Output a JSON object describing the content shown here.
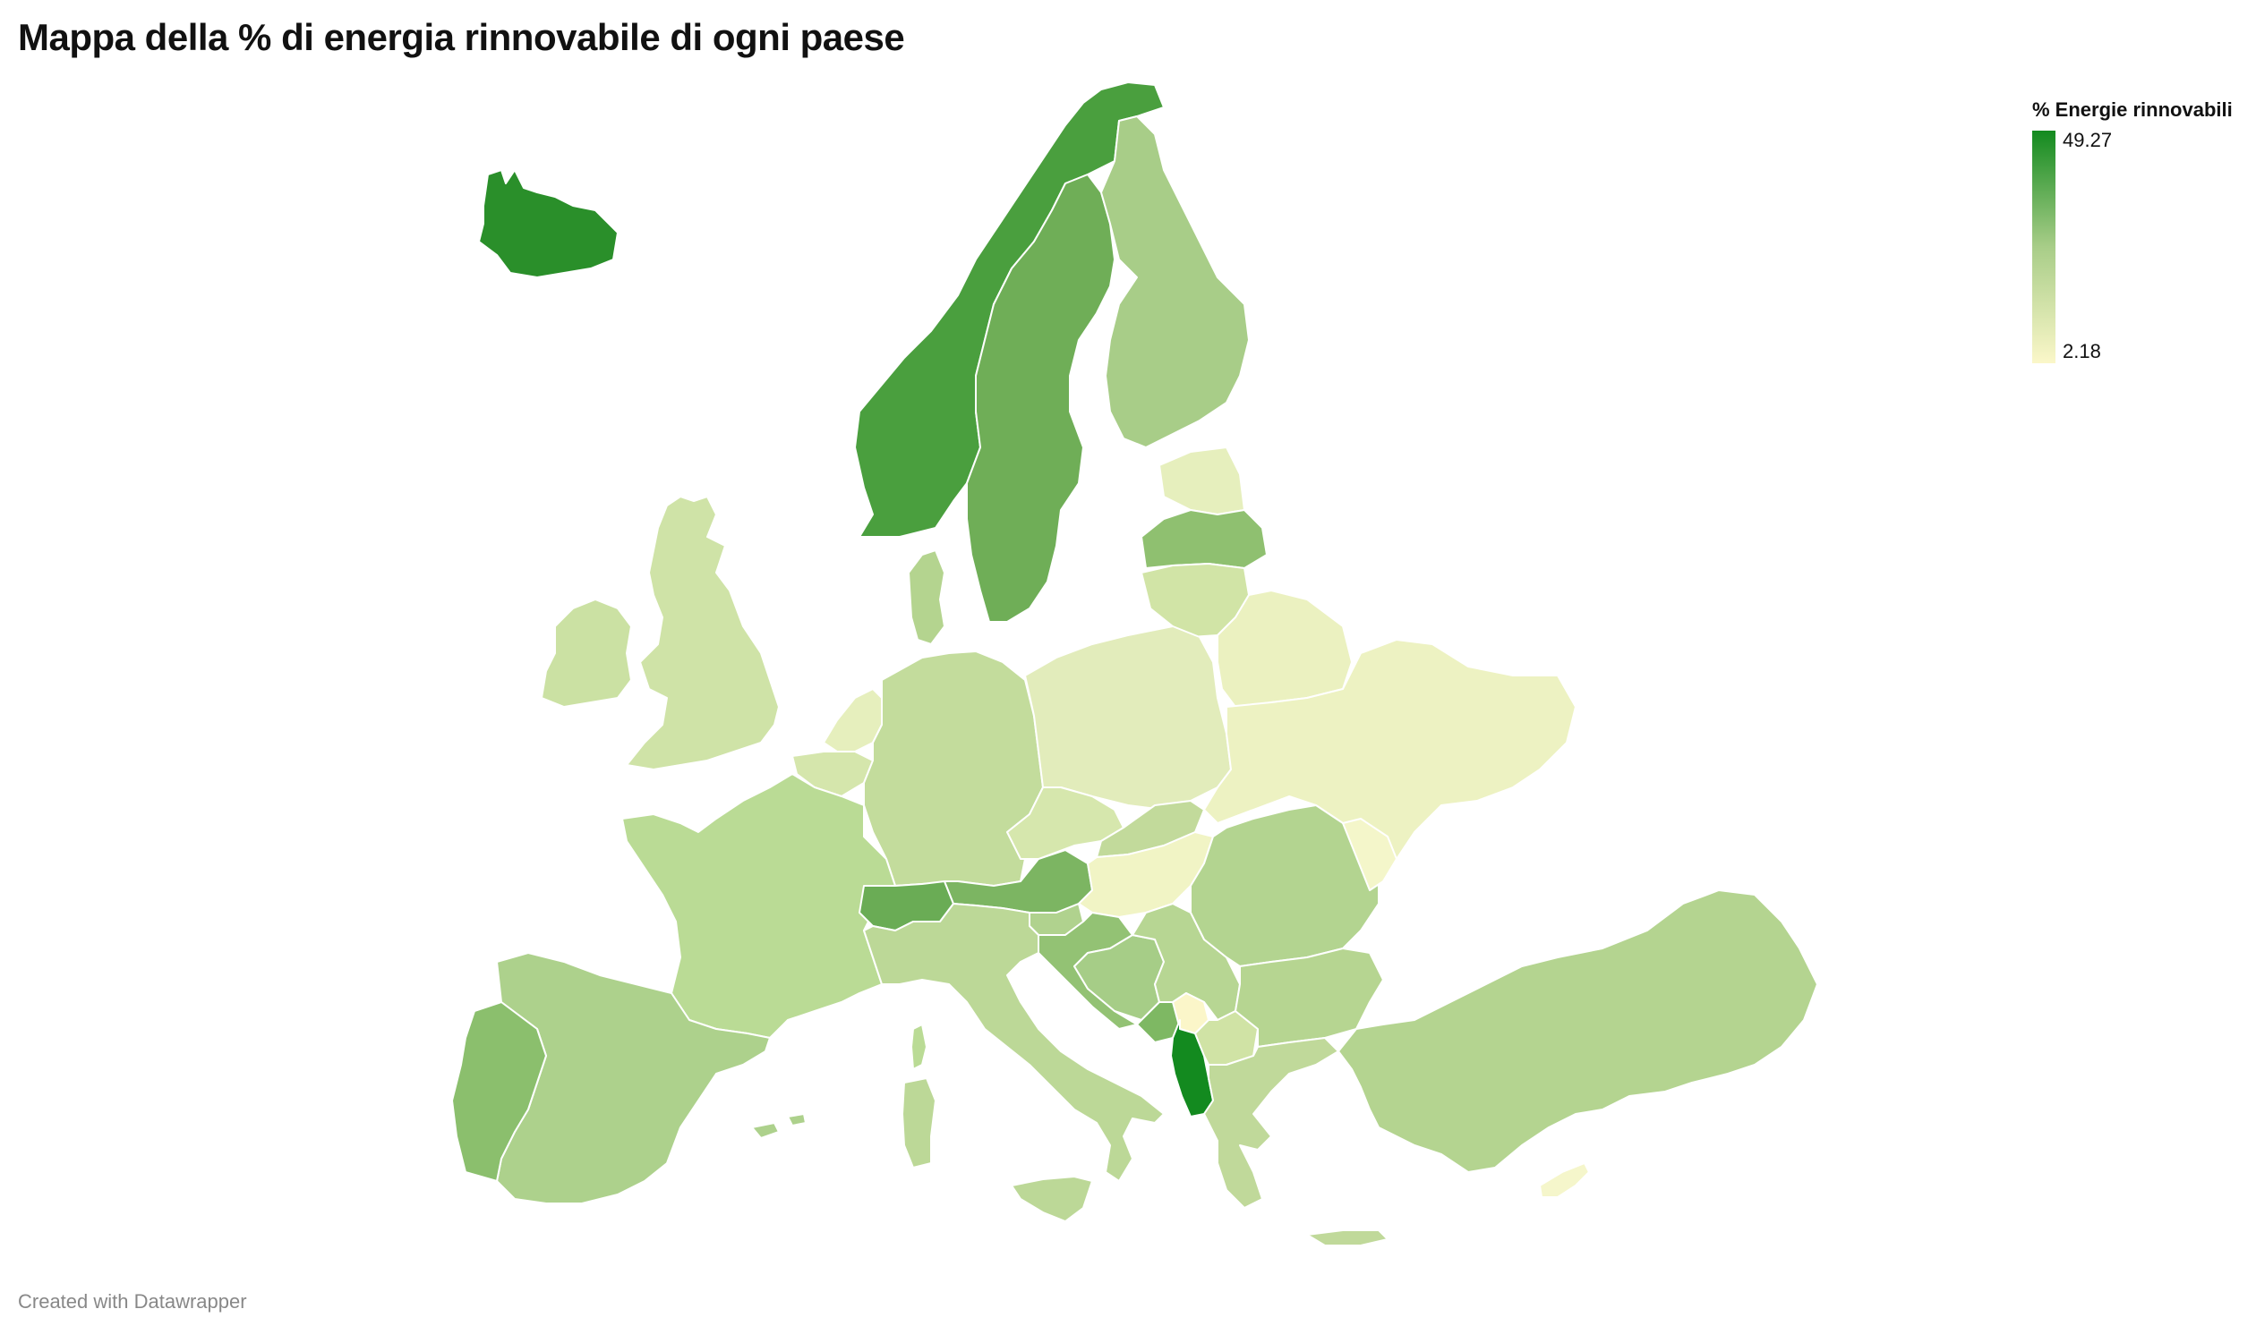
{
  "title": "Mappa della % di energia rinnovabile di ogni paese",
  "footer": "Created with Datawrapper",
  "legend": {
    "title": "% Energie rinnovabili",
    "max_label": "49.27",
    "min_label": "2.18",
    "min_value": 2.18,
    "max_value": 49.27,
    "color_low": "#fbf7c9",
    "color_high": "#138a1f"
  },
  "colors": {
    "c_iceland": "#2a8f2a",
    "c_norway": "#4a9f3e",
    "c_sweden": "#6fae57",
    "c_finland": "#a8cd88",
    "c_estonia": "#e6efbd",
    "c_latvia": "#8fc070",
    "c_lithuania": "#d1e4a6",
    "c_denmark": "#b4d48f",
    "c_uk": "#cfe3a7",
    "c_ireland": "#cbe1a3",
    "c_netherlands": "#e6efbd",
    "c_belgium": "#d5e6ac",
    "c_germany": "#c3dc9c",
    "c_poland": "#e2ecbb",
    "c_belarus": "#ebf1c0",
    "c_ukraine": "#edf2c2",
    "c_france": "#badb95",
    "c_switzerland": "#6aac55",
    "c_austria": "#7cb562",
    "c_czechia": "#d6e7ad",
    "c_slovakia": "#c2da9b",
    "c_hungary": "#f1f4c5",
    "c_romania": "#b3d490",
    "c_moldova": "#f4f6ca",
    "c_spain": "#add18c",
    "c_portugal": "#8bbf6d",
    "c_italy": "#bcd897",
    "c_slovenia": "#b0d28e",
    "c_croatia": "#93c274",
    "c_bosnia": "#a6cd87",
    "c_serbia": "#b7d693",
    "c_montenegro": "#7eb863",
    "c_kosovo": "#fbf6c9",
    "c_albania": "#138a1f",
    "c_macedonia": "#d0e3a5",
    "c_bulgaria": "#b6d591",
    "c_greece": "#c0d99a",
    "c_turkey": "#b4d490",
    "c_cyprus": "#f5f6cb",
    "c_sardinia": "#bcd897",
    "c_corsica": "#badb95"
  }
}
